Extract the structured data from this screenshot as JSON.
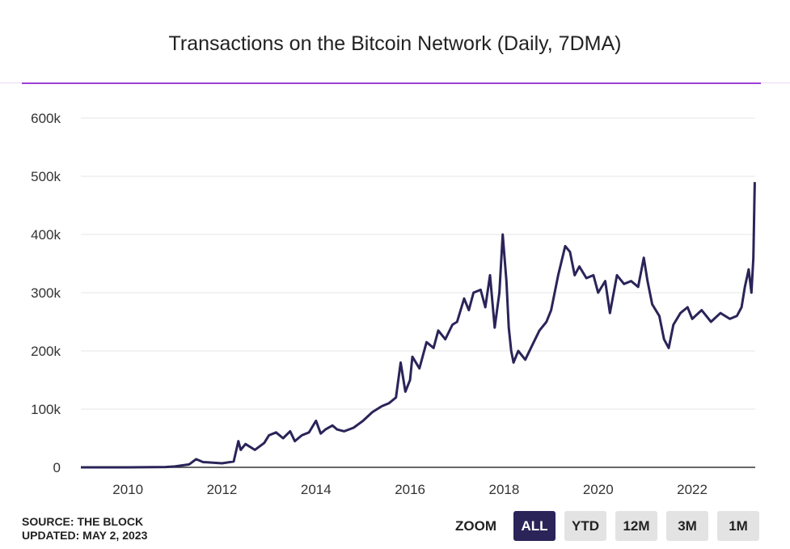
{
  "title": "Transactions on the Bitcoin Network (Daily, 7DMA)",
  "source_line": "SOURCE: THE BLOCK",
  "updated_line": "UPDATED: MAY 2, 2023",
  "zoom": {
    "label": "ZOOM",
    "buttons": [
      {
        "label": "ALL",
        "active": true
      },
      {
        "label": "YTD",
        "active": false
      },
      {
        "label": "12M",
        "active": false
      },
      {
        "label": "3M",
        "active": false
      },
      {
        "label": "1M",
        "active": false
      }
    ]
  },
  "colors": {
    "line": "#2a2459",
    "accent": "#9b3fd6",
    "grid": "#e6e6e6",
    "button": "#e3e3e3"
  },
  "chart_data": {
    "type": "line",
    "title": "Transactions on the Bitcoin Network (Daily, 7DMA)",
    "xlabel": "",
    "ylabel": "",
    "grid": true,
    "xlim": [
      2009.0,
      2023.34
    ],
    "ylim": [
      0,
      600000
    ],
    "xticks": [
      2010,
      2012,
      2014,
      2016,
      2018,
      2020,
      2022
    ],
    "xtick_labels": [
      "2010",
      "2012",
      "2014",
      "2016",
      "2018",
      "2020",
      "2022"
    ],
    "yticks": [
      0,
      100000,
      200000,
      300000,
      400000,
      500000,
      600000
    ],
    "ytick_labels": [
      "0",
      "100k",
      "200k",
      "300k",
      "400k",
      "500k",
      "600k"
    ],
    "series": [
      {
        "name": "",
        "x": [
          2009.0,
          2010.0,
          2010.8,
          2011.0,
          2011.3,
          2011.45,
          2011.6,
          2012.0,
          2012.25,
          2012.35,
          2012.4,
          2012.5,
          2012.7,
          2012.9,
          2013.0,
          2013.15,
          2013.3,
          2013.45,
          2013.55,
          2013.7,
          2013.85,
          2014.0,
          2014.1,
          2014.2,
          2014.35,
          2014.45,
          2014.6,
          2014.8,
          2015.0,
          2015.2,
          2015.4,
          2015.55,
          2015.7,
          2015.8,
          2015.9,
          2016.0,
          2016.05,
          2016.2,
          2016.35,
          2016.5,
          2016.6,
          2016.75,
          2016.9,
          2017.0,
          2017.15,
          2017.25,
          2017.35,
          2017.5,
          2017.6,
          2017.7,
          2017.8,
          2017.9,
          2017.97,
          2018.05,
          2018.1,
          2018.15,
          2018.2,
          2018.3,
          2018.45,
          2018.6,
          2018.75,
          2018.9,
          2019.0,
          2019.15,
          2019.3,
          2019.4,
          2019.5,
          2019.6,
          2019.75,
          2019.9,
          2020.0,
          2020.15,
          2020.25,
          2020.4,
          2020.55,
          2020.7,
          2020.85,
          2020.97,
          2021.05,
          2021.15,
          2021.3,
          2021.4,
          2021.5,
          2021.6,
          2021.75,
          2021.9,
          2022.0,
          2022.2,
          2022.4,
          2022.6,
          2022.8,
          2022.95,
          2023.05,
          2023.12,
          2023.2,
          2023.26,
          2023.3,
          2023.33
        ],
        "y": [
          0,
          0,
          500,
          1500,
          5000,
          14000,
          9000,
          7000,
          10000,
          45000,
          30000,
          40000,
          30000,
          42000,
          55000,
          60000,
          50000,
          62000,
          45000,
          55000,
          60000,
          80000,
          58000,
          65000,
          72000,
          65000,
          62000,
          68000,
          80000,
          95000,
          105000,
          110000,
          120000,
          180000,
          130000,
          150000,
          190000,
          170000,
          215000,
          205000,
          235000,
          220000,
          245000,
          250000,
          290000,
          270000,
          300000,
          305000,
          275000,
          330000,
          240000,
          300000,
          400000,
          320000,
          240000,
          200000,
          180000,
          200000,
          185000,
          210000,
          235000,
          250000,
          270000,
          330000,
          380000,
          370000,
          330000,
          345000,
          325000,
          330000,
          300000,
          320000,
          265000,
          330000,
          315000,
          320000,
          310000,
          360000,
          320000,
          280000,
          260000,
          220000,
          205000,
          245000,
          265000,
          275000,
          255000,
          270000,
          250000,
          265000,
          255000,
          260000,
          275000,
          310000,
          340000,
          300000,
          360000,
          490000
        ]
      }
    ]
  }
}
